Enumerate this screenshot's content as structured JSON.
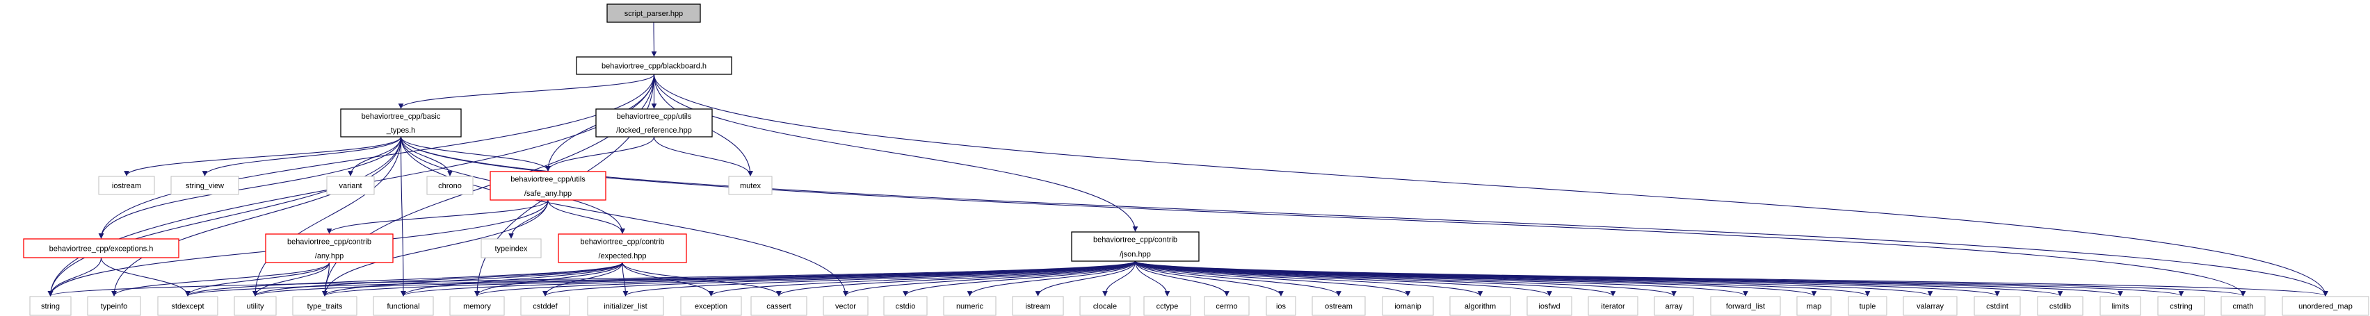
{
  "colors": {
    "edge": "#191970",
    "root_fill": "#bfbfbf",
    "local_border": "#000000",
    "incomplete_border": "#ff0000",
    "system_border": "#bfbfbf"
  },
  "nodes": {
    "script_parser": {
      "lines": [
        "script_parser.hpp"
      ],
      "kind": "root"
    },
    "blackboard": {
      "lines": [
        "behaviortree_cpp/blackboard.h"
      ],
      "kind": "local"
    },
    "basic_types": {
      "lines": [
        "behaviortree_cpp/basic",
        "_types.h"
      ],
      "kind": "local"
    },
    "locked_reference": {
      "lines": [
        "behaviortree_cpp/utils",
        "/locked_reference.hpp"
      ],
      "kind": "local"
    },
    "safe_any": {
      "lines": [
        "behaviortree_cpp/utils",
        "/safe_any.hpp"
      ],
      "kind": "incomplete"
    },
    "exceptions": {
      "lines": [
        "behaviortree_cpp/exceptions.h"
      ],
      "kind": "incomplete"
    },
    "any": {
      "lines": [
        "behaviortree_cpp/contrib",
        "/any.hpp"
      ],
      "kind": "incomplete"
    },
    "expected": {
      "lines": [
        "behaviortree_cpp/contrib",
        "/expected.hpp"
      ],
      "kind": "incomplete"
    },
    "json": {
      "lines": [
        "behaviortree_cpp/contrib",
        "/json.hpp"
      ],
      "kind": "local"
    },
    "iostream": {
      "lines": [
        "iostream"
      ],
      "kind": "system"
    },
    "string_view": {
      "lines": [
        "string_view"
      ],
      "kind": "system"
    },
    "variant": {
      "lines": [
        "variant"
      ],
      "kind": "system"
    },
    "chrono": {
      "lines": [
        "chrono"
      ],
      "kind": "system"
    },
    "mutex": {
      "lines": [
        "mutex"
      ],
      "kind": "system"
    },
    "typeindex": {
      "lines": [
        "typeindex"
      ],
      "kind": "system"
    },
    "string": {
      "lines": [
        "string"
      ],
      "kind": "system"
    },
    "typeinfo": {
      "lines": [
        "typeinfo"
      ],
      "kind": "system"
    },
    "stdexcept": {
      "lines": [
        "stdexcept"
      ],
      "kind": "system"
    },
    "utility": {
      "lines": [
        "utility"
      ],
      "kind": "system"
    },
    "type_traits": {
      "lines": [
        "type_traits"
      ],
      "kind": "system"
    },
    "functional": {
      "lines": [
        "functional"
      ],
      "kind": "system"
    },
    "memory": {
      "lines": [
        "memory"
      ],
      "kind": "system"
    },
    "cstddef": {
      "lines": [
        "cstddef"
      ],
      "kind": "system"
    },
    "initializer_list": {
      "lines": [
        "initializer_list"
      ],
      "kind": "system"
    },
    "exception": {
      "lines": [
        "exception"
      ],
      "kind": "system"
    },
    "cassert": {
      "lines": [
        "cassert"
      ],
      "kind": "system"
    },
    "vector": {
      "lines": [
        "vector"
      ],
      "kind": "system"
    },
    "cstdio": {
      "lines": [
        "cstdio"
      ],
      "kind": "system"
    },
    "numeric": {
      "lines": [
        "numeric"
      ],
      "kind": "system"
    },
    "istream": {
      "lines": [
        "istream"
      ],
      "kind": "system"
    },
    "clocale": {
      "lines": [
        "clocale"
      ],
      "kind": "system"
    },
    "cctype": {
      "lines": [
        "cctype"
      ],
      "kind": "system"
    },
    "cerrno": {
      "lines": [
        "cerrno"
      ],
      "kind": "system"
    },
    "ios": {
      "lines": [
        "ios"
      ],
      "kind": "system"
    },
    "ostream": {
      "lines": [
        "ostream"
      ],
      "kind": "system"
    },
    "iomanip": {
      "lines": [
        "iomanip"
      ],
      "kind": "system"
    },
    "algorithm": {
      "lines": [
        "algorithm"
      ],
      "kind": "system"
    },
    "iosfwd": {
      "lines": [
        "iosfwd"
      ],
      "kind": "system"
    },
    "iterator": {
      "lines": [
        "iterator"
      ],
      "kind": "system"
    },
    "array": {
      "lines": [
        "array"
      ],
      "kind": "system"
    },
    "forward_list": {
      "lines": [
        "forward_list"
      ],
      "kind": "system"
    },
    "map": {
      "lines": [
        "map"
      ],
      "kind": "system"
    },
    "tuple": {
      "lines": [
        "tuple"
      ],
      "kind": "system"
    },
    "valarray": {
      "lines": [
        "valarray"
      ],
      "kind": "system"
    },
    "cstdint": {
      "lines": [
        "cstdint"
      ],
      "kind": "system"
    },
    "cstdlib": {
      "lines": [
        "cstdlib"
      ],
      "kind": "system"
    },
    "limits": {
      "lines": [
        "limits"
      ],
      "kind": "system"
    },
    "cstring": {
      "lines": [
        "cstring"
      ],
      "kind": "system"
    },
    "cmath": {
      "lines": [
        "cmath"
      ],
      "kind": "system"
    },
    "unordered_map": {
      "lines": [
        "unordered_map"
      ],
      "kind": "system"
    }
  },
  "edges": [
    [
      "script_parser",
      "blackboard"
    ],
    [
      "blackboard",
      "string"
    ],
    [
      "blackboard",
      "exceptions"
    ],
    [
      "blackboard",
      "basic_types"
    ],
    [
      "blackboard",
      "safe_any"
    ],
    [
      "blackboard",
      "locked_reference"
    ],
    [
      "blackboard",
      "mutex"
    ],
    [
      "blackboard",
      "memory"
    ],
    [
      "blackboard",
      "json"
    ],
    [
      "blackboard",
      "unordered_map"
    ],
    [
      "blackboard",
      "type_traits"
    ],
    [
      "basic_types",
      "iostream"
    ],
    [
      "basic_types",
      "string_view"
    ],
    [
      "basic_types",
      "variant"
    ],
    [
      "basic_types",
      "chrono"
    ],
    [
      "basic_types",
      "safe_any"
    ],
    [
      "basic_types",
      "exceptions"
    ],
    [
      "basic_types",
      "string"
    ],
    [
      "basic_types",
      "typeinfo"
    ],
    [
      "basic_types",
      "utility"
    ],
    [
      "basic_types",
      "functional"
    ],
    [
      "basic_types",
      "expected"
    ],
    [
      "basic_types",
      "vector"
    ],
    [
      "basic_types",
      "unordered_map"
    ],
    [
      "basic_types",
      "cmath"
    ],
    [
      "locked_reference",
      "safe_any"
    ],
    [
      "locked_reference",
      "mutex"
    ],
    [
      "safe_any",
      "string"
    ],
    [
      "safe_any",
      "any"
    ],
    [
      "safe_any",
      "type_traits"
    ],
    [
      "safe_any",
      "typeindex"
    ],
    [
      "safe_any",
      "expected"
    ],
    [
      "exceptions",
      "string"
    ],
    [
      "exceptions",
      "stdexcept"
    ],
    [
      "any",
      "typeinfo"
    ],
    [
      "any",
      "stdexcept"
    ],
    [
      "any",
      "utility"
    ],
    [
      "any",
      "type_traits"
    ],
    [
      "expected",
      "stdexcept"
    ],
    [
      "expected",
      "utility"
    ],
    [
      "expected",
      "type_traits"
    ],
    [
      "expected",
      "functional"
    ],
    [
      "expected",
      "memory"
    ],
    [
      "expected",
      "cstddef"
    ],
    [
      "expected",
      "initializer_list"
    ],
    [
      "expected",
      "exception"
    ],
    [
      "expected",
      "cassert"
    ],
    [
      "json",
      "string"
    ],
    [
      "json",
      "stdexcept"
    ],
    [
      "json",
      "utility"
    ],
    [
      "json",
      "type_traits"
    ],
    [
      "json",
      "functional"
    ],
    [
      "json",
      "memory"
    ],
    [
      "json",
      "cstddef"
    ],
    [
      "json",
      "initializer_list"
    ],
    [
      "json",
      "exception"
    ],
    [
      "json",
      "cassert"
    ],
    [
      "json",
      "vector"
    ],
    [
      "json",
      "cstdio"
    ],
    [
      "json",
      "numeric"
    ],
    [
      "json",
      "istream"
    ],
    [
      "json",
      "clocale"
    ],
    [
      "json",
      "cctype"
    ],
    [
      "json",
      "cerrno"
    ],
    [
      "json",
      "ios"
    ],
    [
      "json",
      "ostream"
    ],
    [
      "json",
      "iomanip"
    ],
    [
      "json",
      "algorithm"
    ],
    [
      "json",
      "iosfwd"
    ],
    [
      "json",
      "iterator"
    ],
    [
      "json",
      "array"
    ],
    [
      "json",
      "forward_list"
    ],
    [
      "json",
      "map"
    ],
    [
      "json",
      "tuple"
    ],
    [
      "json",
      "valarray"
    ],
    [
      "json",
      "cstdint"
    ],
    [
      "json",
      "cstdlib"
    ],
    [
      "json",
      "limits"
    ],
    [
      "json",
      "cstring"
    ],
    [
      "json",
      "cmath"
    ],
    [
      "json",
      "unordered_map"
    ]
  ]
}
